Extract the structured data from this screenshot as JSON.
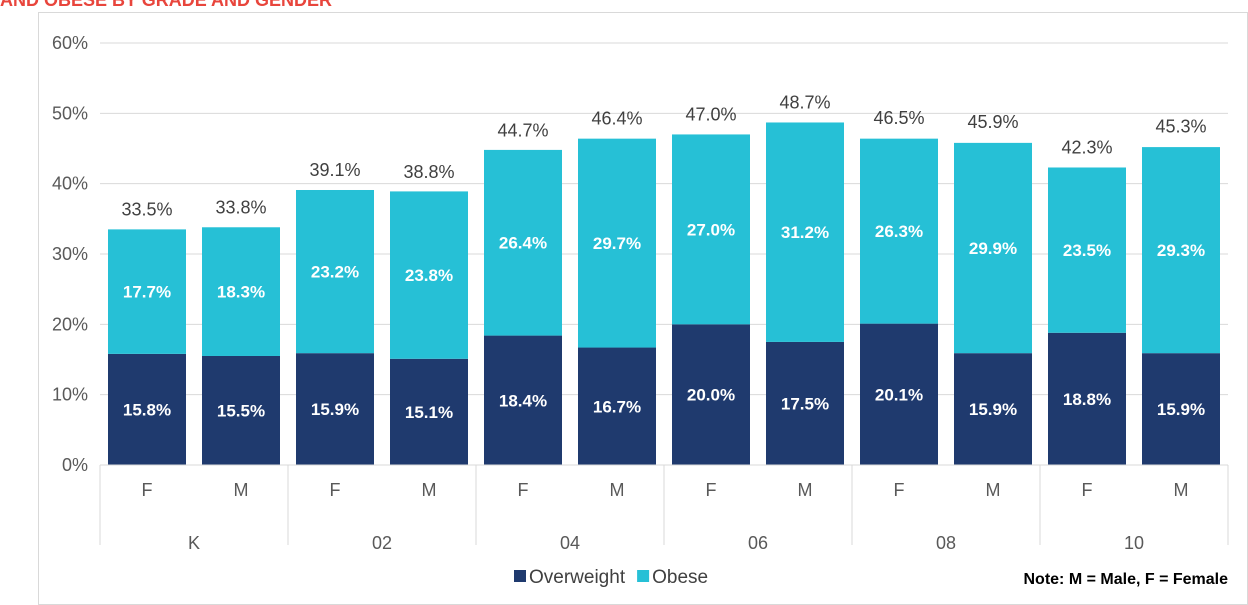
{
  "chart_data": {
    "type": "stacked_bar",
    "title": "AND OBESE BY GRADE AND GENDER",
    "categories": [
      "F",
      "M",
      "F",
      "M",
      "F",
      "M",
      "F",
      "M",
      "F",
      "M",
      "F",
      "M"
    ],
    "group_labels": [
      "K",
      "02",
      "04",
      "06",
      "08",
      "10"
    ],
    "series": [
      {
        "name": "Overweight",
        "color": "#1f3a6e",
        "values": [
          15.8,
          15.5,
          15.9,
          15.1,
          18.4,
          16.7,
          20.0,
          17.5,
          20.1,
          15.9,
          18.8,
          15.9
        ],
        "value_labels": [
          "15.8%",
          "15.5%",
          "15.9%",
          "15.1%",
          "18.4%",
          "16.7%",
          "20.0%",
          "17.5%",
          "20.1%",
          "15.9%",
          "18.8%",
          "15.9%"
        ]
      },
      {
        "name": "Obese",
        "color": "#26c0d6",
        "values": [
          17.7,
          18.3,
          23.2,
          23.8,
          26.4,
          29.7,
          27.0,
          31.2,
          26.3,
          29.9,
          23.5,
          29.3
        ],
        "value_labels": [
          "17.7%",
          "18.3%",
          "23.2%",
          "23.8%",
          "26.4%",
          "29.7%",
          "27.0%",
          "31.2%",
          "26.3%",
          "29.9%",
          "23.5%",
          "29.3%"
        ]
      }
    ],
    "totals": [
      33.5,
      33.8,
      39.1,
      38.8,
      44.7,
      46.4,
      47.0,
      48.7,
      46.5,
      45.9,
      42.3,
      45.3
    ],
    "total_labels": [
      "33.5%",
      "33.8%",
      "39.1%",
      "38.8%",
      "44.7%",
      "46.4%",
      "47.0%",
      "48.7%",
      "46.5%",
      "45.9%",
      "42.3%",
      "45.3%"
    ],
    "ylim": [
      0,
      60
    ],
    "yticks": [
      {
        "value": 0,
        "label": "0%"
      },
      {
        "value": 10,
        "label": "10%"
      },
      {
        "value": 20,
        "label": "20%"
      },
      {
        "value": 30,
        "label": "30%"
      },
      {
        "value": 40,
        "label": "40%"
      },
      {
        "value": 50,
        "label": "50%"
      },
      {
        "value": 60,
        "label": "60%"
      }
    ],
    "grid": true,
    "legend": "bottom",
    "note": "Note: M = Male, F = Female"
  }
}
